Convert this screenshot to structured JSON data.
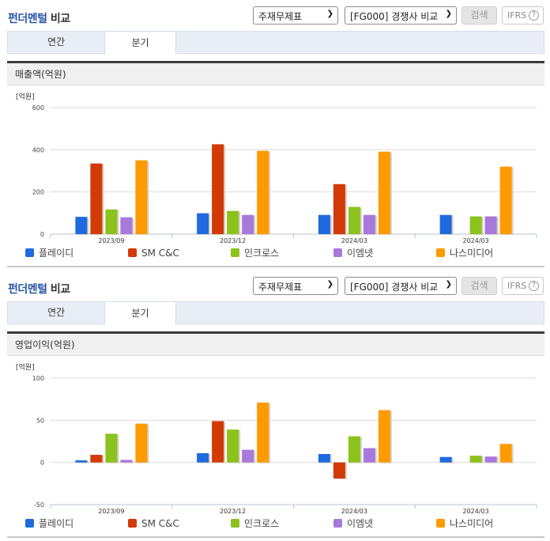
{
  "header": {
    "title_blue": "펀더멘털",
    "title_dark": " 비교",
    "select_statement": "주재무제표",
    "select_compare": "[FG000] 경쟁사 비교",
    "search_label": "검색",
    "ifrs_label": "IFRS",
    "help_glyph": "?"
  },
  "tabs": [
    {
      "label": "연간",
      "active": false
    },
    {
      "label": "분기",
      "active": true
    }
  ],
  "legend": [
    {
      "name": "플레이디",
      "color": "#1f6adf"
    },
    {
      "name": "SM C&C",
      "color": "#d23a06"
    },
    {
      "name": "인크로스",
      "color": "#8cc21e"
    },
    {
      "name": "이엠넷",
      "color": "#a879dc"
    },
    {
      "name": "나스미디어",
      "color": "#ff9a00"
    }
  ],
  "chart_data": [
    {
      "type": "bar",
      "title": "매출액(억원)",
      "unit_label": "[억원]",
      "xlabel": "",
      "ylabel": "[억원]",
      "ylim": [
        0,
        600
      ],
      "yticks": [
        0,
        200,
        400,
        600
      ],
      "grid": true,
      "legend_position": "bottom",
      "categories": [
        "2023/09",
        "2023/12",
        "2024/03",
        "2024/03"
      ],
      "series": [
        {
          "name": "플레이디",
          "color": "#1f6adf",
          "values": [
            82,
            99,
            91,
            91
          ]
        },
        {
          "name": "SM C&C",
          "color": "#d23a06",
          "values": [
            335,
            426,
            237,
            null
          ]
        },
        {
          "name": "인크로스",
          "color": "#8cc21e",
          "values": [
            117,
            110,
            129,
            84
          ]
        },
        {
          "name": "이엠넷",
          "color": "#a879dc",
          "values": [
            80,
            91,
            91,
            84
          ]
        },
        {
          "name": "나스미디어",
          "color": "#ff9a00",
          "values": [
            350,
            395,
            391,
            320
          ]
        }
      ]
    },
    {
      "type": "bar",
      "title": "영업이익(억원)",
      "unit_label": "[억원]",
      "xlabel": "",
      "ylabel": "[억원]",
      "ylim": [
        -50,
        100
      ],
      "yticks": [
        -50,
        0,
        50,
        100
      ],
      "grid": true,
      "legend_position": "bottom",
      "categories": [
        "2023/09",
        "2023/12",
        "2024/03",
        "2024/03"
      ],
      "series": [
        {
          "name": "플레이디",
          "color": "#1f6adf",
          "values": [
            2.5,
            11,
            10,
            6.5
          ]
        },
        {
          "name": "SM C&C",
          "color": "#d23a06",
          "values": [
            9,
            49,
            -19,
            null
          ]
        },
        {
          "name": "인크로스",
          "color": "#8cc21e",
          "values": [
            34,
            39,
            31,
            8
          ]
        },
        {
          "name": "이엠넷",
          "color": "#a879dc",
          "values": [
            3,
            15,
            17,
            7
          ]
        },
        {
          "name": "나스미디어",
          "color": "#ff9a00",
          "values": [
            46,
            71,
            62,
            22
          ]
        }
      ]
    }
  ]
}
